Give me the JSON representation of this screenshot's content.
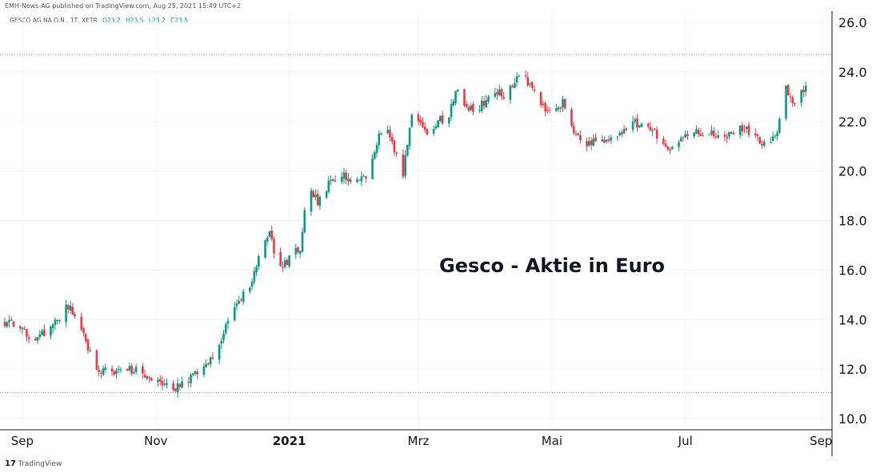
{
  "header": {
    "published_text": "EMH-News-AG published on TradingView.com, Aug 25, 2021 15:49 UTC+2",
    "symbol_text": "GESCO AG NA O.N., 1T, XETR",
    "ohlc": {
      "o": "O23.2",
      "h": "H23.5",
      "l": "L23.2",
      "c": "C23.5"
    }
  },
  "footer": {
    "brand_logo": "17",
    "brand_text": "TradingView"
  },
  "colors": {
    "up": "#089981",
    "down": "#f23645",
    "grid": "#f0f3fa",
    "axis": "#131722"
  },
  "chart_data": {
    "type": "candlestick",
    "title": "",
    "annotation": "Gesco - Aktie in Euro",
    "ylim": [
      9.7,
      26.6
    ],
    "grid": true,
    "y_ticks": [
      "26.0",
      "24.0",
      "22.0",
      "20.0",
      "18.0",
      "16.0",
      "14.0",
      "12.0",
      "10.0"
    ],
    "x_ticks": [
      {
        "label": "Sep",
        "date": "2020-09-01",
        "bold": false
      },
      {
        "label": "Nov",
        "date": "2020-11-01",
        "bold": false
      },
      {
        "label": "2021",
        "date": "2021-01-01",
        "bold": true
      },
      {
        "label": "Mrz",
        "date": "2021-03-01",
        "bold": false
      },
      {
        "label": "Mai",
        "date": "2021-05-01",
        "bold": false
      },
      {
        "label": "Jul",
        "date": "2021-07-01",
        "bold": false
      },
      {
        "label": "Sep",
        "date": "2021-09-01",
        "bold": false
      }
    ],
    "x_range": [
      "2020-08-24",
      "2021-09-06"
    ],
    "reference_levels": [
      24.7,
      11.05
    ],
    "anchors": [
      [
        "2020-08-24",
        13.9
      ],
      [
        "2020-08-31",
        13.8
      ],
      [
        "2020-09-05",
        12.9
      ],
      [
        "2020-09-12",
        13.6
      ],
      [
        "2020-09-17",
        14.0
      ],
      [
        "2020-09-21",
        14.5
      ],
      [
        "2020-09-25",
        14.3
      ],
      [
        "2020-10-01",
        12.9
      ],
      [
        "2020-10-05",
        12.0
      ],
      [
        "2020-10-12",
        11.9
      ],
      [
        "2020-10-19",
        12.0
      ],
      [
        "2020-10-26",
        11.9
      ],
      [
        "2020-10-30",
        11.6
      ],
      [
        "2020-11-04",
        11.4
      ],
      [
        "2020-11-09",
        11.2
      ],
      [
        "2020-11-15",
        11.55
      ],
      [
        "2020-11-20",
        11.8
      ],
      [
        "2020-11-26",
        12.4
      ],
      [
        "2020-12-01",
        13.2
      ],
      [
        "2020-12-06",
        14.3
      ],
      [
        "2020-12-10",
        14.9
      ],
      [
        "2020-12-14",
        15.3
      ],
      [
        "2020-12-18",
        16.5
      ],
      [
        "2020-12-23",
        17.4
      ],
      [
        "2020-12-28",
        16.0
      ],
      [
        "2021-01-01",
        16.5
      ],
      [
        "2021-01-06",
        16.9
      ],
      [
        "2021-01-09",
        19.2
      ],
      [
        "2021-01-14",
        18.8
      ],
      [
        "2021-01-20",
        19.6
      ],
      [
        "2021-01-27",
        19.8
      ],
      [
        "2021-02-02",
        19.6
      ],
      [
        "2021-02-06",
        19.7
      ],
      [
        "2021-02-10",
        21.2
      ],
      [
        "2021-02-14",
        22.0
      ],
      [
        "2021-02-18",
        20.8
      ],
      [
        "2021-02-22",
        19.9
      ],
      [
        "2021-02-26",
        22.2
      ],
      [
        "2021-03-02",
        21.8
      ],
      [
        "2021-03-06",
        21.3
      ],
      [
        "2021-03-10",
        22.2
      ],
      [
        "2021-03-14",
        21.7
      ],
      [
        "2021-03-18",
        23.4
      ],
      [
        "2021-03-22",
        22.6
      ],
      [
        "2021-03-27",
        22.5
      ],
      [
        "2021-04-01",
        22.8
      ],
      [
        "2021-04-05",
        23.2
      ],
      [
        "2021-04-10",
        23.0
      ],
      [
        "2021-04-14",
        23.6
      ],
      [
        "2021-04-17",
        24.1
      ],
      [
        "2021-04-21",
        23.4
      ],
      [
        "2021-04-24",
        23.1
      ],
      [
        "2021-04-28",
        22.4
      ],
      [
        "2021-05-02",
        22.3
      ],
      [
        "2021-05-06",
        22.8
      ],
      [
        "2021-05-11",
        21.6
      ],
      [
        "2021-05-17",
        21.1
      ],
      [
        "2021-05-24",
        21.3
      ],
      [
        "2021-06-01",
        21.4
      ],
      [
        "2021-06-06",
        22.1
      ],
      [
        "2021-06-11",
        21.8
      ],
      [
        "2021-06-17",
        21.6
      ],
      [
        "2021-06-21",
        21.1
      ],
      [
        "2021-06-25",
        20.9
      ],
      [
        "2021-06-30",
        21.3
      ],
      [
        "2021-07-05",
        21.6
      ],
      [
        "2021-07-10",
        21.4
      ],
      [
        "2021-07-15",
        21.5
      ],
      [
        "2021-07-20",
        21.3
      ],
      [
        "2021-07-25",
        21.8
      ],
      [
        "2021-07-30",
        21.6
      ],
      [
        "2021-08-04",
        21.2
      ],
      [
        "2021-08-09",
        21.0
      ],
      [
        "2021-08-12",
        21.7
      ],
      [
        "2021-08-16",
        23.5
      ],
      [
        "2021-08-19",
        22.6
      ],
      [
        "2021-08-23",
        23.2
      ],
      [
        "2021-08-25",
        23.5
      ]
    ]
  }
}
